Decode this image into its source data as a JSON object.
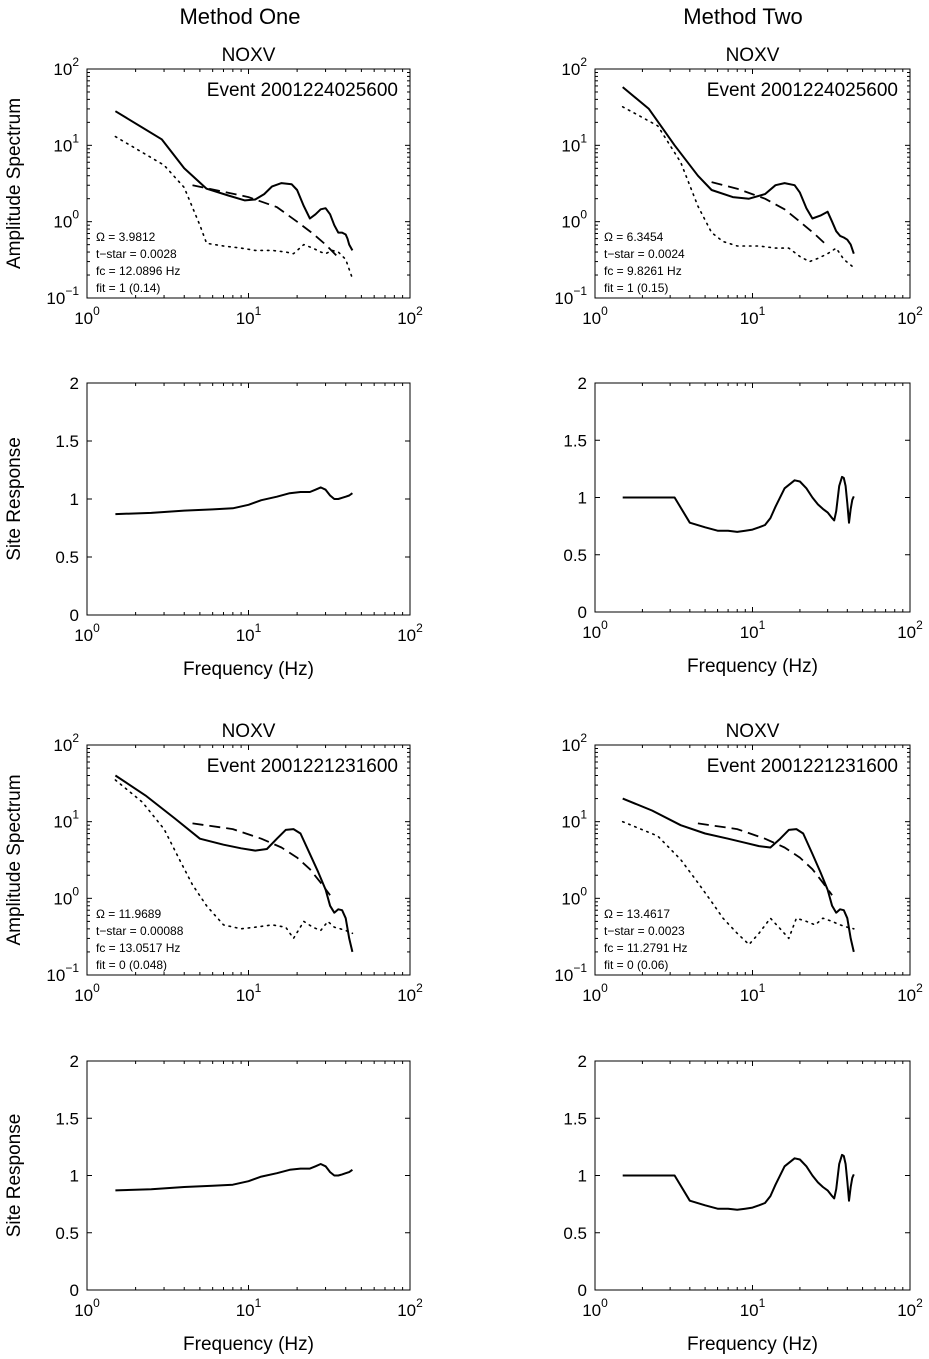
{
  "figure": {
    "column_titles": [
      "Method One",
      "Method Two"
    ]
  },
  "chart_data": [
    {
      "type": "line",
      "panel": "amplitude",
      "column": "Method One",
      "title": "NOXV",
      "event": "Event 2001224025600",
      "ylabel": "Amplitude Spectrum",
      "xlabel": "",
      "xscale": "log",
      "yscale": "log",
      "xlim": [
        1,
        100
      ],
      "ylim": [
        0.1,
        100
      ],
      "x_ticks": [
        "10^0",
        "10^1",
        "10^2"
      ],
      "y_ticks": [
        "10^-1",
        "10^0",
        "10^1",
        "10^2"
      ],
      "params": [
        "Ω = 3.9812",
        "t−star = 0.0028",
        "fc = 12.0896 Hz",
        "fit = 1 (0.14)"
      ],
      "series": [
        {
          "style": "solid",
          "x": [
            1.5,
            2.9,
            4.0,
            5.5,
            7.5,
            9.5,
            11.0,
            12.5,
            14.0,
            16.0,
            18.5,
            20.0,
            22.0,
            24.0,
            26.0,
            28.0,
            30.0,
            32.0,
            34.0,
            36.0,
            38.0,
            40.0,
            41.0,
            42.0,
            44.0
          ],
          "y": [
            28,
            12,
            5.0,
            2.7,
            2.2,
            1.9,
            1.95,
            2.3,
            2.9,
            3.2,
            3.1,
            2.6,
            1.6,
            1.1,
            1.25,
            1.45,
            1.5,
            1.25,
            0.9,
            0.72,
            0.72,
            0.68,
            0.6,
            0.5,
            0.42
          ]
        },
        {
          "style": "dashed",
          "x": [
            4.5,
            10.0,
            15.0,
            20.0,
            25.0,
            30.0,
            35.0
          ],
          "y": [
            3.0,
            2.1,
            1.55,
            1.0,
            0.7,
            0.5,
            0.36
          ]
        },
        {
          "style": "dotted",
          "x": [
            1.5,
            3.0,
            4.0,
            5.0,
            5.5,
            7.0,
            9.0,
            11.0,
            14.0,
            17.0,
            19.0,
            22.0,
            25.0,
            28.0,
            30.0,
            33.0,
            36.0,
            40.0,
            44.0
          ],
          "y": [
            13,
            5.5,
            2.8,
            0.9,
            0.52,
            0.48,
            0.45,
            0.42,
            0.42,
            0.4,
            0.38,
            0.5,
            0.45,
            0.4,
            0.38,
            0.42,
            0.4,
            0.32,
            0.18
          ]
        }
      ]
    },
    {
      "type": "line",
      "panel": "amplitude",
      "column": "Method Two",
      "title": "NOXV",
      "event": "Event 2001224025600",
      "ylabel": "",
      "xlabel": "",
      "xscale": "log",
      "yscale": "log",
      "xlim": [
        1,
        100
      ],
      "ylim": [
        0.1,
        100
      ],
      "x_ticks": [
        "10^0",
        "10^1",
        "10^2"
      ],
      "y_ticks": [
        "10^-1",
        "10^0",
        "10^1",
        "10^2"
      ],
      "params": [
        "Ω = 6.3454",
        "t−star = 0.0024",
        "fc = 9.8261 Hz",
        "fit = 1 (0.15)"
      ],
      "series": [
        {
          "style": "solid",
          "x": [
            1.5,
            2.2,
            3.2,
            4.5,
            5.5,
            7.5,
            9.5,
            12.0,
            14.0,
            16.0,
            18.5,
            20.0,
            22.0,
            24.0,
            27.0,
            30.0,
            32.0,
            34.0,
            36.0,
            38.0,
            40.0,
            42.0,
            44.0
          ],
          "y": [
            58,
            30,
            10,
            4.0,
            2.6,
            2.1,
            2.0,
            2.3,
            3.0,
            3.2,
            3.0,
            2.4,
            1.5,
            1.1,
            1.2,
            1.35,
            1.0,
            0.75,
            0.65,
            0.62,
            0.58,
            0.5,
            0.38
          ]
        },
        {
          "style": "dashed",
          "x": [
            5.5,
            8.0,
            12.0,
            16.0,
            20.0,
            25.0,
            30.0
          ],
          "y": [
            3.3,
            2.7,
            2.0,
            1.45,
            1.0,
            0.68,
            0.48
          ]
        },
        {
          "style": "dotted",
          "x": [
            1.5,
            2.5,
            3.5,
            4.5,
            5.5,
            6.5,
            8.0,
            11.0,
            14.0,
            17.0,
            20.0,
            23.0,
            26.0,
            30.0,
            34.0,
            38.0,
            44.0
          ],
          "y": [
            32,
            18,
            6.0,
            1.6,
            0.72,
            0.55,
            0.48,
            0.48,
            0.45,
            0.45,
            0.35,
            0.3,
            0.33,
            0.38,
            0.45,
            0.32,
            0.25
          ]
        }
      ]
    },
    {
      "type": "line",
      "panel": "site",
      "column": "Method One",
      "title": "",
      "ylabel": "Site Response",
      "xlabel": "Frequency (Hz)",
      "xscale": "log",
      "yscale": "linear",
      "xlim": [
        1,
        100
      ],
      "ylim": [
        0,
        2
      ],
      "x_ticks": [
        "10^0",
        "10^1",
        "10^2"
      ],
      "y_ticks": [
        "0",
        "0.5",
        "1",
        "1.5",
        "2"
      ],
      "series": [
        {
          "style": "solid",
          "x": [
            1.5,
            2.5,
            4.0,
            6.0,
            8.0,
            10.0,
            12.0,
            15.0,
            18.0,
            21.0,
            24.0,
            26.0,
            28.0,
            30.0,
            32.0,
            34.0,
            36.0,
            38.0,
            40.0,
            42.0,
            44.0
          ],
          "y": [
            0.87,
            0.88,
            0.9,
            0.91,
            0.92,
            0.95,
            0.99,
            1.02,
            1.05,
            1.06,
            1.06,
            1.08,
            1.1,
            1.08,
            1.03,
            1.0,
            1.0,
            1.01,
            1.02,
            1.03,
            1.05
          ]
        }
      ]
    },
    {
      "type": "line",
      "panel": "site",
      "column": "Method Two",
      "title": "",
      "ylabel": "",
      "xlabel": "Frequency (Hz)",
      "xscale": "log",
      "yscale": "linear",
      "xlim": [
        1,
        100
      ],
      "ylim": [
        0,
        2
      ],
      "x_ticks": [
        "10^0",
        "10^1",
        "10^2"
      ],
      "y_ticks": [
        "0",
        "0.5",
        "1",
        "1.5",
        "2"
      ],
      "series": [
        {
          "style": "solid",
          "x": [
            1.5,
            2.0,
            2.5,
            3.0,
            3.2,
            4.0,
            5.0,
            6.0,
            7.0,
            8.0,
            9.0,
            10.0,
            11.0,
            12.0,
            13.0,
            14.0,
            16.0,
            18.5,
            20.0,
            22.0,
            24.0,
            26.0,
            28.0,
            30.0,
            32.0,
            33.0,
            34.0,
            35.5,
            37.0,
            38.0,
            39.0,
            40.0,
            41.0,
            42.0,
            43.0,
            44.0
          ],
          "y": [
            1.0,
            1.0,
            1.0,
            1.0,
            1.0,
            0.78,
            0.74,
            0.71,
            0.71,
            0.7,
            0.71,
            0.72,
            0.74,
            0.76,
            0.82,
            0.92,
            1.08,
            1.15,
            1.14,
            1.08,
            1.0,
            0.94,
            0.9,
            0.87,
            0.82,
            0.8,
            0.88,
            1.1,
            1.18,
            1.17,
            1.1,
            0.95,
            0.78,
            0.9,
            0.98,
            1.01
          ]
        }
      ]
    },
    {
      "type": "line",
      "panel": "amplitude",
      "column": "Method One",
      "title": "NOXV",
      "event": "Event 2001221231600",
      "ylabel": "Amplitude Spectrum",
      "xlabel": "",
      "xscale": "log",
      "yscale": "log",
      "xlim": [
        1,
        100
      ],
      "ylim": [
        0.1,
        100
      ],
      "x_ticks": [
        "10^0",
        "10^1",
        "10^2"
      ],
      "y_ticks": [
        "10^-1",
        "10^0",
        "10^1",
        "10^2"
      ],
      "params": [
        "Ω = 11.9689",
        "t−star = 0.00088",
        "fc = 13.0517 Hz",
        "fit = 0 (0.048)"
      ],
      "series": [
        {
          "style": "solid",
          "x": [
            1.5,
            2.3,
            3.5,
            5.0,
            7.0,
            9.0,
            11.0,
            13.0,
            15.0,
            17.0,
            19.0,
            21.0,
            24.0,
            27.0,
            30.0,
            32.0,
            34.0,
            36.0,
            38.0,
            40.0,
            42.0,
            44.0
          ],
          "y": [
            40,
            22,
            11,
            6.0,
            5.0,
            4.5,
            4.2,
            4.4,
            6.0,
            7.8,
            8.0,
            7.0,
            3.8,
            2.2,
            1.3,
            0.8,
            0.65,
            0.72,
            0.7,
            0.55,
            0.3,
            0.2
          ]
        },
        {
          "style": "dashed",
          "x": [
            4.5,
            8.0,
            12.0,
            16.0,
            20.0,
            24.0,
            28.0,
            32.0
          ],
          "y": [
            9.5,
            8.0,
            6.0,
            4.6,
            3.4,
            2.4,
            1.6,
            1.1
          ]
        },
        {
          "style": "dotted",
          "x": [
            1.5,
            2.2,
            3.0,
            3.8,
            4.5,
            5.5,
            7.0,
            9.0,
            11.0,
            14.0,
            17.0,
            19.0,
            22.0,
            25.0,
            28.0,
            31.0,
            34.0,
            37.0,
            40.0,
            44.0
          ],
          "y": [
            35,
            18,
            8.0,
            3.0,
            1.5,
            0.8,
            0.45,
            0.4,
            0.42,
            0.45,
            0.42,
            0.3,
            0.5,
            0.42,
            0.38,
            0.5,
            0.42,
            0.4,
            0.38,
            0.35
          ]
        }
      ]
    },
    {
      "type": "line",
      "panel": "amplitude",
      "column": "Method Two",
      "title": "NOXV",
      "event": "Event 2001221231600",
      "ylabel": "",
      "xlabel": "",
      "xscale": "log",
      "yscale": "log",
      "xlim": [
        1,
        100
      ],
      "ylim": [
        0.1,
        100
      ],
      "x_ticks": [
        "10^0",
        "10^1",
        "10^2"
      ],
      "y_ticks": [
        "10^-1",
        "10^0",
        "10^1",
        "10^2"
      ],
      "params": [
        "Ω = 13.4617",
        "t−star = 0.0023",
        "fc = 11.2791 Hz",
        "fit = 0 (0.06)"
      ],
      "series": [
        {
          "style": "solid",
          "x": [
            1.5,
            2.3,
            3.5,
            5.0,
            7.0,
            9.0,
            11.0,
            13.0,
            15.0,
            17.0,
            19.0,
            21.0,
            24.0,
            27.0,
            30.0,
            32.0,
            34.0,
            36.0,
            38.0,
            40.0,
            42.0,
            44.0
          ],
          "y": [
            20,
            14,
            9.0,
            7.0,
            6.0,
            5.3,
            4.8,
            4.6,
            6.0,
            7.8,
            8.0,
            7.0,
            3.8,
            2.2,
            1.3,
            0.8,
            0.65,
            0.72,
            0.7,
            0.55,
            0.3,
            0.2
          ]
        },
        {
          "style": "dashed",
          "x": [
            4.5,
            8.0,
            12.0,
            16.0,
            20.0,
            24.0,
            28.0,
            32.0
          ],
          "y": [
            9.5,
            8.0,
            6.0,
            4.6,
            3.4,
            2.4,
            1.6,
            1.1
          ]
        },
        {
          "style": "dotted",
          "x": [
            1.5,
            2.5,
            3.5,
            4.5,
            5.5,
            6.5,
            8.0,
            9.5,
            11.0,
            13.0,
            15.0,
            17.0,
            19.0,
            22.0,
            25.0,
            28.0,
            32.0,
            36.0,
            40.0,
            44.0
          ],
          "y": [
            10,
            6.5,
            3.2,
            1.6,
            0.9,
            0.55,
            0.35,
            0.25,
            0.35,
            0.55,
            0.4,
            0.3,
            0.55,
            0.5,
            0.45,
            0.55,
            0.5,
            0.45,
            0.42,
            0.4
          ]
        }
      ]
    },
    {
      "type": "line",
      "panel": "site",
      "column": "Method One",
      "title": "",
      "ylabel": "Site Response",
      "xlabel": "Frequency (Hz)",
      "xscale": "log",
      "yscale": "linear",
      "xlim": [
        1,
        100
      ],
      "ylim": [
        0,
        2
      ],
      "x_ticks": [
        "10^0",
        "10^1",
        "10^2"
      ],
      "y_ticks": [
        "0",
        "0.5",
        "1",
        "1.5",
        "2"
      ],
      "series": [
        {
          "style": "solid",
          "x": [
            1.5,
            2.5,
            4.0,
            6.0,
            8.0,
            10.0,
            12.0,
            15.0,
            18.0,
            21.0,
            24.0,
            26.0,
            28.0,
            30.0,
            32.0,
            34.0,
            36.0,
            38.0,
            40.0,
            42.0,
            44.0
          ],
          "y": [
            0.87,
            0.88,
            0.9,
            0.91,
            0.92,
            0.95,
            0.99,
            1.02,
            1.05,
            1.06,
            1.06,
            1.08,
            1.1,
            1.08,
            1.03,
            1.0,
            1.0,
            1.01,
            1.02,
            1.03,
            1.05
          ]
        }
      ]
    },
    {
      "type": "line",
      "panel": "site",
      "column": "Method Two",
      "title": "",
      "ylabel": "",
      "xlabel": "Frequency (Hz)",
      "xscale": "log",
      "yscale": "linear",
      "xlim": [
        1,
        100
      ],
      "ylim": [
        0,
        2
      ],
      "x_ticks": [
        "10^0",
        "10^1",
        "10^2"
      ],
      "y_ticks": [
        "0",
        "0.5",
        "1",
        "1.5",
        "2"
      ],
      "series": [
        {
          "style": "solid",
          "x": [
            1.5,
            2.0,
            2.5,
            3.0,
            3.2,
            4.0,
            5.0,
            6.0,
            7.0,
            8.0,
            9.0,
            10.0,
            11.0,
            12.0,
            13.0,
            14.0,
            16.0,
            18.5,
            20.0,
            22.0,
            24.0,
            26.0,
            28.0,
            30.0,
            32.0,
            33.0,
            34.0,
            35.5,
            37.0,
            38.0,
            39.0,
            40.0,
            41.0,
            42.0,
            43.0,
            44.0
          ],
          "y": [
            1.0,
            1.0,
            1.0,
            1.0,
            1.0,
            0.78,
            0.74,
            0.71,
            0.71,
            0.7,
            0.71,
            0.72,
            0.74,
            0.76,
            0.82,
            0.92,
            1.08,
            1.15,
            1.14,
            1.08,
            1.0,
            0.94,
            0.9,
            0.87,
            0.82,
            0.8,
            0.88,
            1.1,
            1.18,
            1.17,
            1.1,
            0.95,
            0.78,
            0.9,
            0.98,
            1.01
          ]
        }
      ]
    }
  ]
}
